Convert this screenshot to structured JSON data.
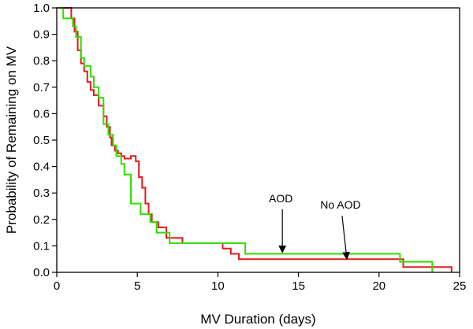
{
  "chart_data": {
    "type": "line",
    "subtype": "step",
    "title": "",
    "xlabel": "MV Duration (days)",
    "ylabel": "Probability of Remaining on MV",
    "xlim": [
      0,
      25
    ],
    "ylim": [
      0,
      1
    ],
    "xticks": [
      "0",
      "5",
      "10",
      "15",
      "20",
      "25"
    ],
    "yticks": [
      "0.0",
      "0.1",
      "0.2",
      "0.3",
      "0.4",
      "0.5",
      "0.6",
      "0.7",
      "0.8",
      "0.9",
      "1.0"
    ],
    "grid": false,
    "legend": "none",
    "series": [
      {
        "color": "#e41a1c",
        "x": [
          0,
          0.9,
          0.9,
          1.1,
          1.1,
          1.3,
          1.3,
          1.5,
          1.5,
          1.7,
          1.7,
          1.9,
          1.9,
          2.1,
          2.1,
          2.3,
          2.3,
          2.6,
          2.6,
          2.9,
          2.9,
          3.1,
          3.1,
          3.3,
          3.3,
          3.4,
          3.4,
          3.6,
          3.6,
          3.8,
          3.8,
          4.0,
          4.0,
          4.2,
          4.2,
          4.6,
          4.6,
          4.9,
          4.9,
          5.1,
          5.1,
          5.3,
          5.3,
          5.5,
          5.5,
          5.7,
          5.7,
          5.9,
          5.9,
          6.3,
          6.3,
          6.8,
          6.8,
          7.8,
          7.8,
          10.3,
          10.3,
          10.8,
          10.8,
          11.3,
          11.3,
          12.0,
          12.0,
          21.5,
          21.5,
          24.5,
          24.5
        ],
        "y": [
          1.0,
          1.0,
          0.96,
          0.96,
          0.91,
          0.91,
          0.84,
          0.84,
          0.79,
          0.79,
          0.76,
          0.76,
          0.72,
          0.72,
          0.69,
          0.69,
          0.67,
          0.67,
          0.63,
          0.63,
          0.59,
          0.59,
          0.55,
          0.55,
          0.51,
          0.51,
          0.48,
          0.48,
          0.46,
          0.46,
          0.45,
          0.45,
          0.44,
          0.44,
          0.43,
          0.43,
          0.44,
          0.44,
          0.42,
          0.42,
          0.36,
          0.36,
          0.32,
          0.32,
          0.26,
          0.26,
          0.22,
          0.22,
          0.19,
          0.19,
          0.17,
          0.17,
          0.13,
          0.13,
          0.11,
          0.11,
          0.09,
          0.09,
          0.07,
          0.07,
          0.05,
          0.05,
          0.05,
          0.05,
          0.02,
          0.02,
          0.0
        ]
      },
      {
        "color": "#33dd00",
        "x": [
          0,
          0.4,
          0.4,
          1.0,
          1.0,
          1.2,
          1.2,
          1.5,
          1.5,
          1.7,
          1.7,
          2.1,
          2.1,
          2.3,
          2.3,
          2.6,
          2.6,
          2.9,
          2.9,
          3.2,
          3.2,
          3.5,
          3.5,
          3.7,
          3.7,
          4.0,
          4.0,
          4.2,
          4.2,
          4.6,
          4.6,
          5.2,
          5.2,
          5.8,
          5.8,
          6.2,
          6.2,
          6.5,
          6.5,
          7.0,
          7.0,
          11.7,
          11.7,
          21.3,
          21.3,
          23.3,
          23.3
        ],
        "y": [
          1.0,
          1.0,
          0.96,
          0.96,
          0.93,
          0.93,
          0.89,
          0.89,
          0.81,
          0.81,
          0.78,
          0.78,
          0.74,
          0.74,
          0.7,
          0.7,
          0.66,
          0.66,
          0.56,
          0.56,
          0.52,
          0.52,
          0.48,
          0.48,
          0.44,
          0.44,
          0.41,
          0.41,
          0.37,
          0.37,
          0.26,
          0.26,
          0.22,
          0.22,
          0.19,
          0.19,
          0.15,
          0.15,
          0.15,
          0.15,
          0.11,
          0.11,
          0.07,
          0.07,
          0.04,
          0.04,
          0.0
        ]
      }
    ],
    "annotations": [
      {
        "text": "AOD",
        "target_x": 14.0,
        "target_y": 0.075
      },
      {
        "text": "No AOD",
        "target_x": 18.0,
        "target_y": 0.05
      }
    ]
  }
}
